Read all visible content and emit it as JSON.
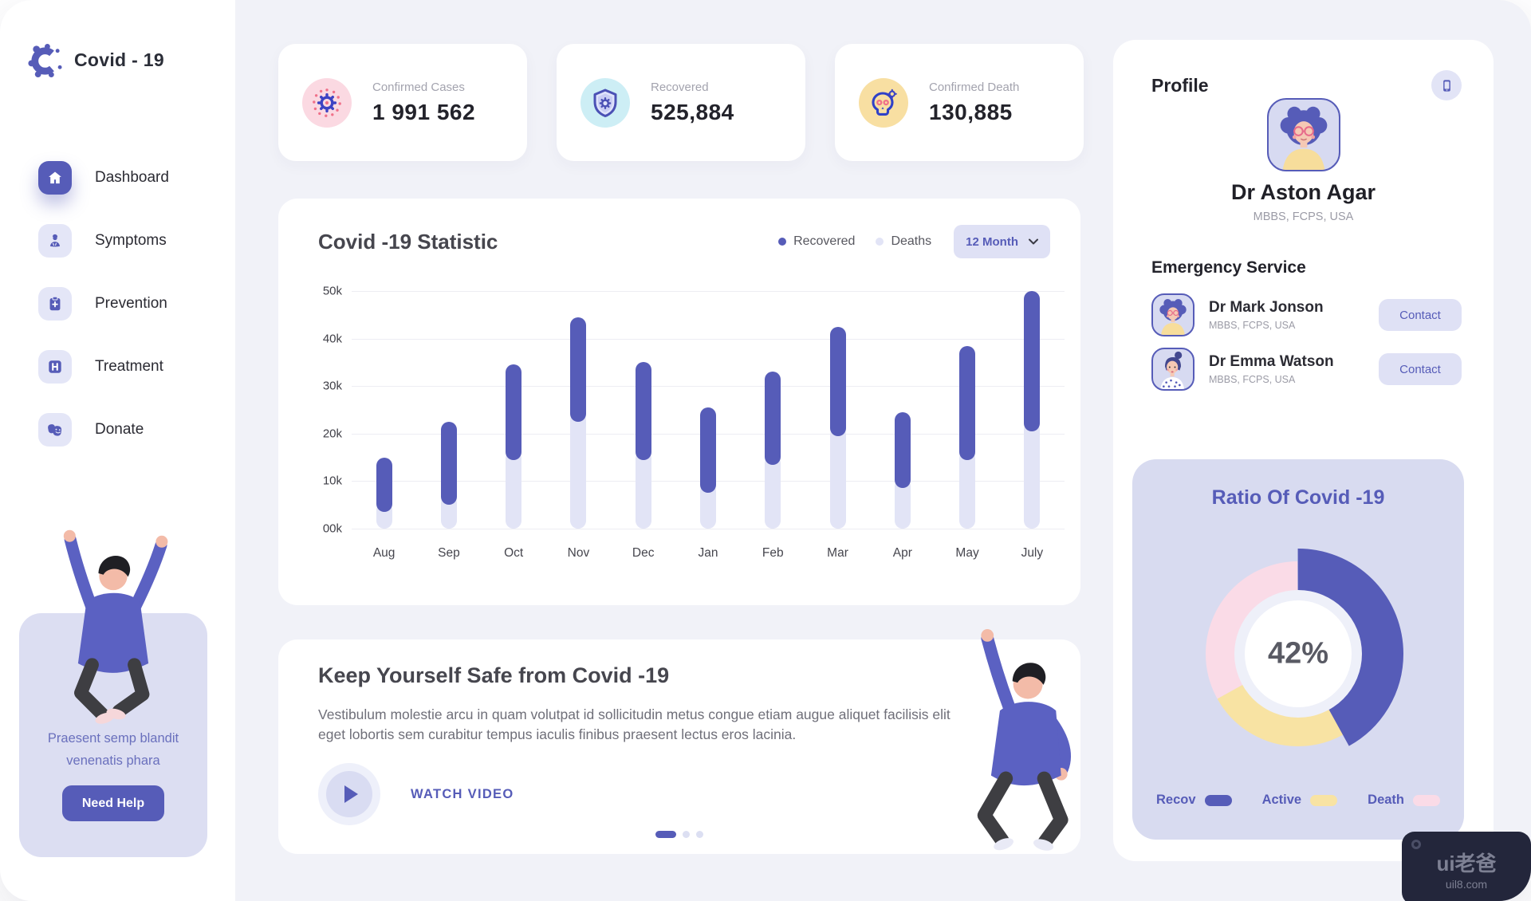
{
  "app": {
    "logo_title": "Covid - 19"
  },
  "sidebar": {
    "items": [
      {
        "label": "Dashboard",
        "icon": "home-icon",
        "active": true
      },
      {
        "label": "Symptoms",
        "icon": "symptoms-icon",
        "active": false
      },
      {
        "label": "Prevention",
        "icon": "prevention-icon",
        "active": false
      },
      {
        "label": "Treatment",
        "icon": "treatment-icon",
        "active": false
      },
      {
        "label": "Donate",
        "icon": "donate-icon",
        "active": false
      }
    ],
    "help_card": {
      "text": "Praesent semp blandit venenatis  phara",
      "button": "Need Help"
    }
  },
  "stats": [
    {
      "label": "Confirmed Cases",
      "value": "1 991 562",
      "icon": "virus-icon",
      "circle_bg": "#fbd9e2"
    },
    {
      "label": "Recovered",
      "value": "525,884",
      "icon": "shield-icon",
      "circle_bg": "#cdeef5"
    },
    {
      "label": "Confirmed Death",
      "value": "130,885",
      "icon": "skull-icon",
      "circle_bg": "#f8dfa2"
    }
  ],
  "statistic_card": {
    "title": "Covid -19 Statistic",
    "legend": [
      {
        "label": "Recovered",
        "color": "#565cb8"
      },
      {
        "label": "Deaths",
        "color": "#e2e4f6"
      }
    ],
    "dropdown_value": "12 Month"
  },
  "chart_data": [
    {
      "type": "bar",
      "title": "Covid -19 Statistic",
      "categories": [
        "Aug",
        "Sep",
        "Oct",
        "Nov",
        "Dec",
        "Jan",
        "Feb",
        "Mar",
        "Apr",
        "May",
        "July"
      ],
      "series": [
        {
          "name": "Deaths",
          "color": "#e2e4f6",
          "values": [
            3.5,
            5,
            14.5,
            22.5,
            14.5,
            7.5,
            13.5,
            19.5,
            8.5,
            14.5,
            20.5
          ]
        },
        {
          "name": "Recovered",
          "color": "#565cb8",
          "values": [
            15,
            22.5,
            34.5,
            44.5,
            35,
            25.5,
            33,
            42.5,
            24.5,
            38.5,
            50
          ]
        }
      ],
      "value_unit": "k",
      "ylim": [
        0,
        50
      ],
      "yticks": [
        "50k",
        "40k",
        "30k",
        "20k",
        "10k",
        "00k"
      ],
      "bar_style": "floating capsule: Recovered segment spans from Deaths value up to Recovered value; light Deaths track runs from 0 to Deaths value",
      "legend_position": "top-right",
      "grid": "horizontal"
    },
    {
      "type": "pie",
      "title": "Ratio Of Covid -19",
      "labels": [
        "Recov",
        "Active",
        "Death"
      ],
      "values": [
        42,
        25,
        33
      ],
      "colors": [
        "#565cb8",
        "#f8e3a3",
        "#fadbe7"
      ],
      "center_label": "42%",
      "style": "donut, Recov slice protrudes outward, starts at 12 o'clock clockwise"
    }
  ],
  "safety_card": {
    "title": "Keep Yourself Safe from Covid -19",
    "body": "Vestibulum molestie arcu in quam volutpat id sollicitudin metus congue etiam augue aliquet facilisis elit eget lobortis sem curabitur tempus iaculis finibus praesent lectus eros lacinia.",
    "watch_video": "WATCH VIDEO",
    "pagination": {
      "total_dots": 3,
      "active_index": 0
    }
  },
  "profile": {
    "heading": "Profile",
    "name": "Dr Aston Agar",
    "credentials": "MBBS, FCPS, USA",
    "emergency_heading": "Emergency Service",
    "doctors": [
      {
        "name": "Dr Mark Jonson",
        "credentials": "MBBS, FCPS, USA",
        "button": "Contact",
        "avatar": "woman-afro-avatar"
      },
      {
        "name": "Dr Emma Watson",
        "credentials": "MBBS, FCPS, USA",
        "button": "Contact",
        "avatar": "woman-bun-avatar"
      }
    ]
  },
  "ratio_card": {
    "title": "Ratio Of Covid -19",
    "center_value": "42%",
    "legend": [
      {
        "label": "Recov",
        "color": "#565cb8"
      },
      {
        "label": "Active",
        "color": "#f8e3a3"
      },
      {
        "label": "Death",
        "color": "#fadbe7"
      }
    ]
  },
  "watermark": {
    "brand": "ui老爸",
    "site": "uil8.com"
  }
}
